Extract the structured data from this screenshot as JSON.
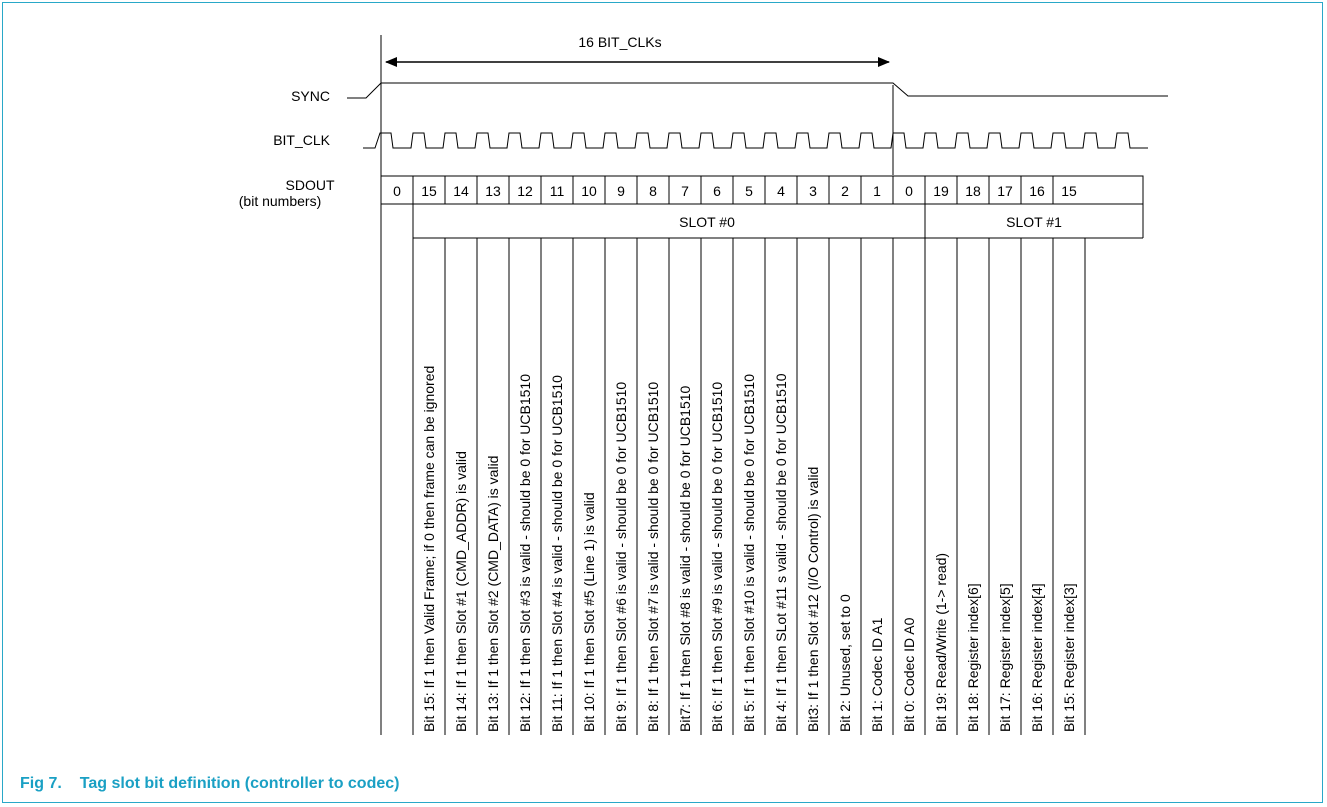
{
  "figure": {
    "number": "Fig 7.",
    "title": "Tag slot bit definition (controller to codec)"
  },
  "span_label": "16 BIT_CLKs",
  "signals": {
    "sync": "SYNC",
    "bit_clk": "BIT_CLK",
    "sdout": "SDOUT",
    "sdout_sub": "(bit numbers)"
  },
  "bit_numbers": [
    "0",
    "15",
    "14",
    "13",
    "12",
    "11",
    "10",
    "9",
    "8",
    "7",
    "6",
    "5",
    "4",
    "3",
    "2",
    "1",
    "0",
    "19",
    "18",
    "17",
    "16",
    "15"
  ],
  "slots": [
    "SLOT #0",
    "SLOT #1"
  ],
  "descriptions": [
    "Bit 15: If 1 then Valid Frame; if 0 then frame can be ignored",
    "Bit 14: If 1 then Slot #1 (CMD_ADDR) is valid",
    "Bit 13: If 1 then Slot #2 (CMD_DATA) is valid",
    "Bit 12: If 1 then Slot #3 is valid - should be 0 for UCB1510",
    "Bit 11: If 1 then Slot #4 is valid - should be 0 for UCB1510",
    "Bit 10: If 1 then Slot #5 (Line 1) is valid",
    "Bit 9: If 1 then Slot #6 is valid - should be 0 for UCB1510",
    "Bit 8: If 1 then Slot #7 is valid - should be 0 for UCB1510",
    "Bit7: If 1 then Slot #8 is valid - should be 0 for UCB1510",
    "Bit 6: If 1 then Slot #9 is valid - should be 0 for UCB1510",
    "Bit 5: If 1 then Slot #10 is valid - should be 0 for UCB1510",
    "Bit 4: If 1 then SLot #11 s valid - should be 0 for UCB1510",
    "Bit3: If 1 then Slot #12 (I/O Control) is valid",
    "Bit 2: Unused, set to 0",
    "Bit 1: Codec ID A1",
    "Bit 0: Codec ID A0",
    "Bit 19: Read/Write (1-> read)",
    "Bit 18: Register index[6]",
    "Bit 17: Register index[5]",
    "Bit 16: Register index[4]",
    "Bit 15: Register index[3]"
  ]
}
